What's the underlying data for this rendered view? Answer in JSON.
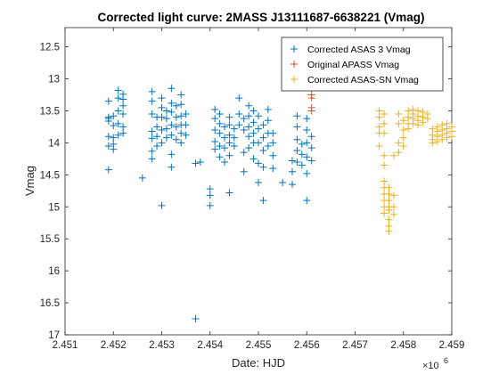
{
  "chart_data": {
    "type": "scatter",
    "title": "Corrected light curve: 2MASS J13111687-6638221 (Vmag)",
    "xlabel": "Date: HJD",
    "ylabel": "Vmag",
    "x_exponent_label": "×10",
    "x_exponent_power": "6",
    "xlim": [
      2.451,
      2.459
    ],
    "ylim": [
      12.2,
      17
    ],
    "y_reversed": true,
    "x_ticks": [
      2.451,
      2.452,
      2.453,
      2.454,
      2.455,
      2.456,
      2.457,
      2.458,
      2.459
    ],
    "x_tick_labels": [
      "2.451",
      "2.452",
      "2.453",
      "2.454",
      "2.455",
      "2.456",
      "2.457",
      "2.458",
      "2.459"
    ],
    "y_ticks": [
      12.5,
      13,
      13.5,
      14,
      14.5,
      15,
      15.5,
      16,
      16.5,
      17
    ],
    "y_tick_labels": [
      "12.5",
      "13",
      "13.5",
      "14",
      "14.5",
      "15",
      "15.5",
      "16",
      "16.5",
      "17"
    ],
    "grid": false,
    "legend_position": "top-right",
    "marker": "+",
    "series": [
      {
        "name": "Corrected ASAS 3 Vmag",
        "color": "#0072BD",
        "points": [
          [
            2.4519,
            13.35
          ],
          [
            2.4519,
            13.6
          ],
          [
            2.4519,
            13.62
          ],
          [
            2.4519,
            13.66
          ],
          [
            2.4519,
            13.9
          ],
          [
            2.4519,
            14.05
          ],
          [
            2.4519,
            14.42
          ],
          [
            2.452,
            13.58
          ],
          [
            2.452,
            13.73
          ],
          [
            2.452,
            13.92
          ],
          [
            2.452,
            14.02
          ],
          [
            2.452,
            14.1
          ],
          [
            2.4521,
            13.18
          ],
          [
            2.4521,
            13.3
          ],
          [
            2.4521,
            13.5
          ],
          [
            2.4521,
            13.7
          ],
          [
            2.4521,
            13.88
          ],
          [
            2.4522,
            13.24
          ],
          [
            2.4522,
            13.32
          ],
          [
            2.4522,
            13.42
          ],
          [
            2.4522,
            13.55
          ],
          [
            2.4522,
            13.75
          ],
          [
            2.4522,
            13.85
          ],
          [
            2.4526,
            14.55
          ],
          [
            2.4528,
            13.2
          ],
          [
            2.4528,
            13.35
          ],
          [
            2.4528,
            13.55
          ],
          [
            2.4528,
            13.82
          ],
          [
            2.4528,
            13.93
          ],
          [
            2.4528,
            14.13
          ],
          [
            2.4528,
            14.25
          ],
          [
            2.4529,
            13.6
          ],
          [
            2.4529,
            13.75
          ],
          [
            2.4529,
            13.9
          ],
          [
            2.4529,
            14.05
          ],
          [
            2.453,
            13.3
          ],
          [
            2.453,
            13.45
          ],
          [
            2.453,
            13.6
          ],
          [
            2.453,
            13.8
          ],
          [
            2.453,
            14.0
          ],
          [
            2.453,
            14.98
          ],
          [
            2.4531,
            13.5
          ],
          [
            2.4531,
            13.62
          ],
          [
            2.4531,
            13.78
          ],
          [
            2.4531,
            13.92
          ],
          [
            2.4532,
            13.15
          ],
          [
            2.4532,
            13.38
          ],
          [
            2.4532,
            13.52
          ],
          [
            2.4532,
            13.72
          ],
          [
            2.4532,
            13.88
          ],
          [
            2.4532,
            14.18
          ],
          [
            2.4532,
            14.38
          ],
          [
            2.4533,
            13.42
          ],
          [
            2.4533,
            13.6
          ],
          [
            2.4533,
            13.75
          ],
          [
            2.4533,
            13.95
          ],
          [
            2.4534,
            13.25
          ],
          [
            2.4534,
            13.4
          ],
          [
            2.4534,
            13.58
          ],
          [
            2.4534,
            13.72
          ],
          [
            2.4534,
            13.85
          ],
          [
            2.4534,
            14.0
          ],
          [
            2.4535,
            13.55
          ],
          [
            2.4535,
            13.72
          ],
          [
            2.4535,
            13.88
          ],
          [
            2.4537,
            14.32
          ],
          [
            2.4537,
            16.75
          ],
          [
            2.4538,
            14.3
          ],
          [
            2.454,
            14.72
          ],
          [
            2.454,
            14.98
          ],
          [
            2.454,
            14.82
          ],
          [
            2.4541,
            13.48
          ],
          [
            2.4541,
            13.62
          ],
          [
            2.4541,
            13.8
          ],
          [
            2.4541,
            13.98
          ],
          [
            2.4541,
            14.1
          ],
          [
            2.4542,
            13.55
          ],
          [
            2.4542,
            13.7
          ],
          [
            2.4542,
            13.85
          ],
          [
            2.4542,
            14.05
          ],
          [
            2.4542,
            14.22
          ],
          [
            2.4543,
            13.75
          ],
          [
            2.4543,
            13.92
          ],
          [
            2.4543,
            14.08
          ],
          [
            2.4543,
            14.3
          ],
          [
            2.4544,
            13.6
          ],
          [
            2.4544,
            13.72
          ],
          [
            2.4544,
            13.88
          ],
          [
            2.4544,
            14.0
          ],
          [
            2.4544,
            14.2
          ],
          [
            2.4544,
            14.78
          ],
          [
            2.4545,
            13.78
          ],
          [
            2.4545,
            13.92
          ],
          [
            2.4545,
            14.05
          ],
          [
            2.4546,
            13.3
          ],
          [
            2.4546,
            13.55
          ],
          [
            2.4546,
            13.72
          ],
          [
            2.4547,
            13.62
          ],
          [
            2.4547,
            13.8
          ],
          [
            2.4547,
            14.15
          ],
          [
            2.4547,
            14.45
          ],
          [
            2.4548,
            13.42
          ],
          [
            2.4548,
            13.58
          ],
          [
            2.4548,
            13.75
          ],
          [
            2.4548,
            13.9
          ],
          [
            2.4548,
            14.08
          ],
          [
            2.4549,
            13.5
          ],
          [
            2.4549,
            13.68
          ],
          [
            2.4549,
            13.85
          ],
          [
            2.4549,
            14.0
          ],
          [
            2.4549,
            14.25
          ],
          [
            2.455,
            13.58
          ],
          [
            2.455,
            13.78
          ],
          [
            2.455,
            14.0
          ],
          [
            2.455,
            14.32
          ],
          [
            2.455,
            14.62
          ],
          [
            2.4551,
            13.72
          ],
          [
            2.4551,
            13.92
          ],
          [
            2.4551,
            14.12
          ],
          [
            2.4551,
            14.38
          ],
          [
            2.4551,
            14.9
          ],
          [
            2.4552,
            13.48
          ],
          [
            2.4552,
            13.65
          ],
          [
            2.4552,
            13.85
          ],
          [
            2.4552,
            14.05
          ],
          [
            2.4553,
            13.85
          ],
          [
            2.4553,
            14.0
          ],
          [
            2.4553,
            14.2
          ],
          [
            2.4553,
            14.4
          ],
          [
            2.4555,
            14.62
          ],
          [
            2.4557,
            14.28
          ],
          [
            2.4557,
            14.45
          ],
          [
            2.4557,
            14.65
          ],
          [
            2.4558,
            13.58
          ],
          [
            2.4558,
            13.75
          ],
          [
            2.4558,
            13.95
          ],
          [
            2.4558,
            14.12
          ],
          [
            2.4558,
            14.3
          ],
          [
            2.4559,
            14.02
          ],
          [
            2.4559,
            14.18
          ],
          [
            2.4559,
            14.35
          ],
          [
            2.456,
            13.62
          ],
          [
            2.456,
            13.8
          ],
          [
            2.456,
            14.0
          ],
          [
            2.456,
            14.22
          ],
          [
            2.456,
            14.48
          ],
          [
            2.456,
            14.9
          ],
          [
            2.4561,
            13.9
          ],
          [
            2.4561,
            14.08
          ],
          [
            2.4561,
            14.28
          ]
        ]
      },
      {
        "name": "Original APASS Vmag",
        "color": "#D95319",
        "points": [
          [
            2.4561,
            13.25
          ],
          [
            2.4561,
            13.3
          ],
          [
            2.4561,
            13.45
          ],
          [
            2.4561,
            13.5
          ]
        ]
      },
      {
        "name": "Corrected ASAS-SN Vmag",
        "color": "#EDB120",
        "points": [
          [
            2.4575,
            13.5
          ],
          [
            2.4575,
            13.6
          ],
          [
            2.4575,
            13.75
          ],
          [
            2.4575,
            13.85
          ],
          [
            2.4575,
            14.05
          ],
          [
            2.4576,
            13.55
          ],
          [
            2.4576,
            13.7
          ],
          [
            2.4576,
            13.85
          ],
          [
            2.4576,
            14.2
          ],
          [
            2.4576,
            14.35
          ],
          [
            2.4576,
            14.6
          ],
          [
            2.4576,
            14.7
          ],
          [
            2.4576,
            14.8
          ],
          [
            2.4576,
            14.9
          ],
          [
            2.4576,
            15.0
          ],
          [
            2.4576,
            15.1
          ],
          [
            2.4577,
            14.7
          ],
          [
            2.4577,
            14.8
          ],
          [
            2.4577,
            14.9
          ],
          [
            2.4577,
            15.0
          ],
          [
            2.4577,
            15.05
          ],
          [
            2.4577,
            15.2
          ],
          [
            2.4577,
            15.3
          ],
          [
            2.4577,
            15.38
          ],
          [
            2.4578,
            14.2
          ],
          [
            2.4578,
            14.82
          ],
          [
            2.4578,
            15.0
          ],
          [
            2.4578,
            15.12
          ],
          [
            2.4579,
            13.55
          ],
          [
            2.4579,
            13.7
          ],
          [
            2.4579,
            14.0
          ],
          [
            2.4579,
            14.15
          ],
          [
            2.458,
            13.65
          ],
          [
            2.458,
            13.8
          ],
          [
            2.458,
            13.92
          ],
          [
            2.458,
            14.05
          ],
          [
            2.4581,
            13.5
          ],
          [
            2.4581,
            13.6
          ],
          [
            2.4581,
            13.7
          ],
          [
            2.4581,
            13.78
          ],
          [
            2.4582,
            13.48
          ],
          [
            2.4582,
            13.55
          ],
          [
            2.4582,
            13.62
          ],
          [
            2.4582,
            13.7
          ],
          [
            2.4583,
            13.5
          ],
          [
            2.4583,
            13.58
          ],
          [
            2.4583,
            13.65
          ],
          [
            2.4583,
            13.72
          ],
          [
            2.4584,
            13.52
          ],
          [
            2.4584,
            13.6
          ],
          [
            2.4584,
            13.68
          ],
          [
            2.4585,
            13.55
          ],
          [
            2.4585,
            13.62
          ],
          [
            2.4586,
            13.78
          ],
          [
            2.4586,
            13.88
          ],
          [
            2.4586,
            13.95
          ],
          [
            2.4586,
            14.0
          ],
          [
            2.4587,
            13.75
          ],
          [
            2.4587,
            13.82
          ],
          [
            2.4587,
            13.9
          ],
          [
            2.4587,
            13.98
          ],
          [
            2.4588,
            13.72
          ],
          [
            2.4588,
            13.8
          ],
          [
            2.4588,
            13.88
          ],
          [
            2.4588,
            13.95
          ],
          [
            2.4589,
            13.7
          ],
          [
            2.4589,
            13.78
          ],
          [
            2.4589,
            13.85
          ],
          [
            2.4589,
            13.92
          ],
          [
            2.459,
            13.75
          ],
          [
            2.459,
            13.82
          ],
          [
            2.459,
            13.9
          ]
        ]
      }
    ]
  }
}
